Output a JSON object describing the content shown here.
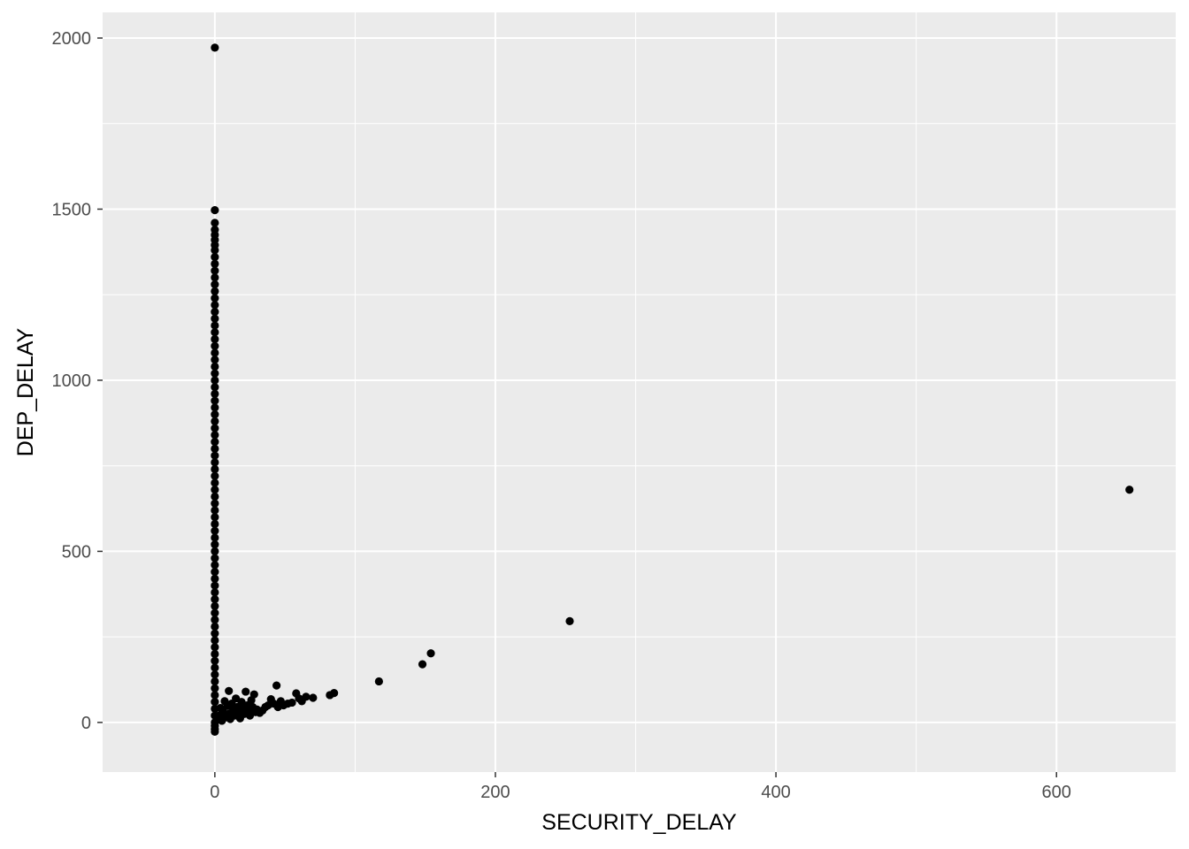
{
  "chart_data": {
    "type": "scatter",
    "title": "",
    "xlabel": "SECURITY_DELAY",
    "ylabel": "DEP_DELAY",
    "xlim": [
      -80,
      685
    ],
    "ylim": [
      -145,
      2075
    ],
    "x_ticks": [
      0,
      200,
      400,
      600
    ],
    "x_tick_labels": [
      "0",
      "200",
      "400",
      "600"
    ],
    "x_minor_ticks": [
      100,
      300,
      500
    ],
    "y_ticks": [
      0,
      500,
      1000,
      1500,
      2000
    ],
    "y_tick_labels": [
      "0",
      "500",
      "1000",
      "1500",
      "2000"
    ],
    "y_minor_ticks": [
      250,
      750,
      1250,
      1750
    ],
    "grid": true,
    "legend": "none",
    "colors": {
      "panel": "#ebebeb",
      "grid": "#ffffff",
      "point": "#000000",
      "tick_text": "#4d4d4d"
    },
    "points": [
      [
        0,
        1972
      ],
      [
        0,
        1497
      ],
      [
        0,
        1460
      ],
      [
        0,
        1440
      ],
      [
        0,
        1425
      ],
      [
        0,
        1410
      ],
      [
        0,
        1395
      ],
      [
        0,
        1380
      ],
      [
        0,
        1360
      ],
      [
        0,
        1340
      ],
      [
        0,
        1320
      ],
      [
        0,
        1300
      ],
      [
        0,
        1280
      ],
      [
        0,
        1260
      ],
      [
        0,
        1240
      ],
      [
        0,
        1220
      ],
      [
        0,
        1200
      ],
      [
        0,
        1180
      ],
      [
        0,
        1160
      ],
      [
        0,
        1140
      ],
      [
        0,
        1120
      ],
      [
        0,
        1100
      ],
      [
        0,
        1080
      ],
      [
        0,
        1060
      ],
      [
        0,
        1040
      ],
      [
        0,
        1020
      ],
      [
        0,
        1000
      ],
      [
        0,
        980
      ],
      [
        0,
        960
      ],
      [
        0,
        940
      ],
      [
        0,
        920
      ],
      [
        0,
        900
      ],
      [
        0,
        880
      ],
      [
        0,
        860
      ],
      [
        0,
        840
      ],
      [
        0,
        820
      ],
      [
        0,
        800
      ],
      [
        0,
        780
      ],
      [
        0,
        760
      ],
      [
        0,
        740
      ],
      [
        0,
        720
      ],
      [
        0,
        700
      ],
      [
        0,
        680
      ],
      [
        0,
        660
      ],
      [
        0,
        640
      ],
      [
        0,
        620
      ],
      [
        0,
        600
      ],
      [
        0,
        580
      ],
      [
        0,
        560
      ],
      [
        0,
        540
      ],
      [
        0,
        520
      ],
      [
        0,
        500
      ],
      [
        0,
        480
      ],
      [
        0,
        460
      ],
      [
        0,
        440
      ],
      [
        0,
        420
      ],
      [
        0,
        400
      ],
      [
        0,
        380
      ],
      [
        0,
        360
      ],
      [
        0,
        340
      ],
      [
        0,
        320
      ],
      [
        0,
        300
      ],
      [
        0,
        280
      ],
      [
        0,
        260
      ],
      [
        0,
        240
      ],
      [
        0,
        220
      ],
      [
        0,
        200
      ],
      [
        0,
        180
      ],
      [
        0,
        160
      ],
      [
        0,
        140
      ],
      [
        0,
        120
      ],
      [
        0,
        100
      ],
      [
        0,
        80
      ],
      [
        0,
        60
      ],
      [
        0,
        40
      ],
      [
        0,
        20
      ],
      [
        0,
        0
      ],
      [
        0,
        -10
      ],
      [
        0,
        -20
      ],
      [
        0,
        -27
      ],
      [
        2,
        8
      ],
      [
        3,
        20
      ],
      [
        4,
        42
      ],
      [
        5,
        5
      ],
      [
        6,
        30
      ],
      [
        7,
        62
      ],
      [
        8,
        15
      ],
      [
        9,
        48
      ],
      [
        10,
        92
      ],
      [
        10,
        25
      ],
      [
        11,
        10
      ],
      [
        12,
        55
      ],
      [
        13,
        35
      ],
      [
        14,
        20
      ],
      [
        15,
        70
      ],
      [
        16,
        45
      ],
      [
        17,
        30
      ],
      [
        18,
        12
      ],
      [
        19,
        60
      ],
      [
        20,
        40
      ],
      [
        21,
        25
      ],
      [
        22,
        90
      ],
      [
        23,
        50
      ],
      [
        24,
        35
      ],
      [
        25,
        20
      ],
      [
        26,
        65
      ],
      [
        27,
        45
      ],
      [
        28,
        82
      ],
      [
        29,
        30
      ],
      [
        30,
        38
      ],
      [
        32,
        28
      ],
      [
        34,
        35
      ],
      [
        36,
        45
      ],
      [
        38,
        50
      ],
      [
        40,
        68
      ],
      [
        42,
        55
      ],
      [
        44,
        108
      ],
      [
        45,
        45
      ],
      [
        47,
        62
      ],
      [
        49,
        50
      ],
      [
        52,
        55
      ],
      [
        55,
        58
      ],
      [
        58,
        85
      ],
      [
        60,
        70
      ],
      [
        62,
        62
      ],
      [
        65,
        75
      ],
      [
        70,
        72
      ],
      [
        82,
        80
      ],
      [
        85,
        86
      ],
      [
        117,
        120
      ],
      [
        148,
        170
      ],
      [
        154,
        202
      ],
      [
        253,
        296
      ],
      [
        652,
        680
      ]
    ]
  }
}
